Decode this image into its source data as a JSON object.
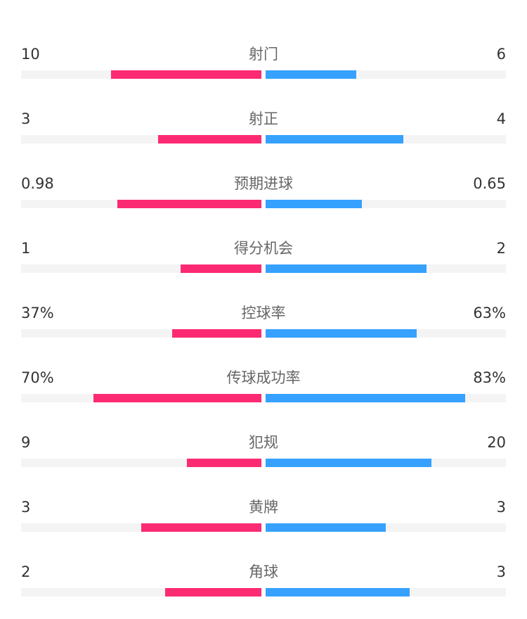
{
  "colors": {
    "home": "#fc2a72",
    "away": "#36a1ff",
    "track": "#f4f4f4"
  },
  "stats": [
    {
      "label": "射门",
      "home": "10",
      "away": "6",
      "home_fill": 0.626,
      "away_fill": 0.377
    },
    {
      "label": "射正",
      "home": "3",
      "away": "4",
      "home_fill": 0.43,
      "away_fill": 0.573
    },
    {
      "label": "预期进球",
      "home": "0.98",
      "away": "0.65",
      "home_fill": 0.6,
      "away_fill": 0.4
    },
    {
      "label": "得分机会",
      "home": "1",
      "away": "2",
      "home_fill": 0.336,
      "away_fill": 0.67
    },
    {
      "label": "控球率",
      "home": "37%",
      "away": "63%",
      "home_fill": 0.37,
      "away_fill": 0.63
    },
    {
      "label": "传球成功率",
      "home": "70%",
      "away": "83%",
      "home_fill": 0.7,
      "away_fill": 0.83
    },
    {
      "label": "犯规",
      "home": "9",
      "away": "20",
      "home_fill": 0.31,
      "away_fill": 0.69
    },
    {
      "label": "黄牌",
      "home": "3",
      "away": "3",
      "home_fill": 0.5,
      "away_fill": 0.5
    },
    {
      "label": "角球",
      "home": "2",
      "away": "3",
      "home_fill": 0.4,
      "away_fill": 0.6
    }
  ]
}
